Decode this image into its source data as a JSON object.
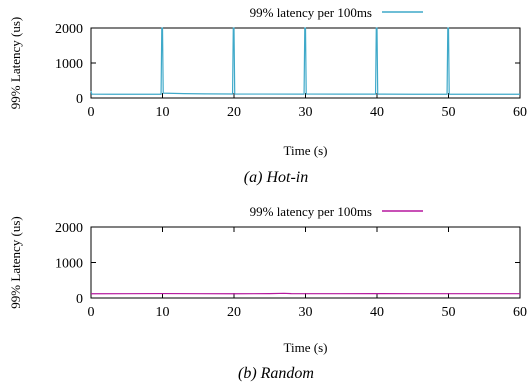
{
  "figure": {
    "captions": [
      "(a) Hot-in",
      "(b) Random"
    ]
  },
  "chart_data": [
    {
      "type": "line",
      "subtitle": "(a) Hot-in",
      "xlabel": "Time (s)",
      "ylabel": "99% Latency (us)",
      "xlim": [
        0,
        60
      ],
      "ylim": [
        0,
        2000
      ],
      "xticks": [
        0,
        10,
        20,
        30,
        40,
        50,
        60
      ],
      "yticks": [
        0,
        1000,
        2000
      ],
      "legend_position": "top-right",
      "grid": false,
      "colors": {
        "series": "#3fa9c9"
      },
      "series": [
        {
          "name": "99% latency per 100ms",
          "points": [
            [
              0,
              200
            ],
            [
              0.1,
              110
            ],
            [
              3,
              108
            ],
            [
              6,
              108
            ],
            [
              9.8,
              108
            ],
            [
              9.9,
              2000
            ],
            [
              10.0,
              2000
            ],
            [
              10.1,
              140
            ],
            [
              13,
              125
            ],
            [
              16,
              118
            ],
            [
              19.8,
              115
            ],
            [
              19.9,
              2000
            ],
            [
              20.0,
              2000
            ],
            [
              20.1,
              115
            ],
            [
              24,
              112
            ],
            [
              29.8,
              110
            ],
            [
              29.9,
              2000
            ],
            [
              30.0,
              2000
            ],
            [
              30.1,
              112
            ],
            [
              35,
              110
            ],
            [
              39.8,
              110
            ],
            [
              39.9,
              2000
            ],
            [
              40.0,
              2000
            ],
            [
              40.1,
              110
            ],
            [
              45,
              108
            ],
            [
              49.8,
              108
            ],
            [
              49.9,
              2000
            ],
            [
              50.0,
              2000
            ],
            [
              50.1,
              108
            ],
            [
              55,
              108
            ],
            [
              60,
              108
            ]
          ]
        }
      ]
    },
    {
      "type": "line",
      "subtitle": "(b) Random",
      "xlabel": "Time (s)",
      "ylabel": "99% Latency (us)",
      "xlim": [
        0,
        60
      ],
      "ylim": [
        0,
        2000
      ],
      "xticks": [
        0,
        10,
        20,
        30,
        40,
        50,
        60
      ],
      "yticks": [
        0,
        1000,
        2000
      ],
      "legend_position": "top-right",
      "grid": false,
      "colors": {
        "series": "#b5179e"
      },
      "series": [
        {
          "name": "99% latency per 100ms",
          "points": [
            [
              0,
              120
            ],
            [
              5,
              122
            ],
            [
              10,
              125
            ],
            [
              15,
              122
            ],
            [
              20,
              120
            ],
            [
              25,
              123
            ],
            [
              27,
              132
            ],
            [
              28,
              124
            ],
            [
              30,
              122
            ],
            [
              35,
              121
            ],
            [
              40,
              123
            ],
            [
              45,
              122
            ],
            [
              50,
              121
            ],
            [
              55,
              122
            ],
            [
              60,
              122
            ]
          ]
        }
      ]
    }
  ]
}
